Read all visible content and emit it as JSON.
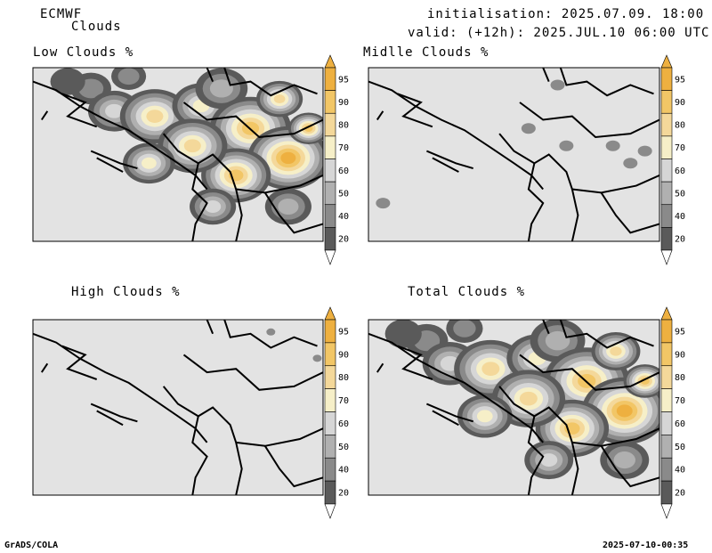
{
  "header": {
    "model": "ECMWF",
    "product": "Clouds",
    "initialisation": "initialisation: 2025.07.09. 18:00 UTC",
    "valid": "valid: (+12h): 2025.JUL.10 06:00 UTC"
  },
  "panels": [
    {
      "id": "low",
      "title": "Low Clouds %"
    },
    {
      "id": "middle",
      "title": "Midlle Clouds %"
    },
    {
      "id": "high",
      "title": "High Clouds %"
    },
    {
      "id": "total",
      "title": "Total Clouds %"
    }
  ],
  "colorbar": {
    "levels": [
      "95",
      "90",
      "80",
      "70",
      "60",
      "50",
      "40",
      "20"
    ],
    "colors": {
      "above95": "#eeb040",
      "90_95": "#f2c666",
      "80_90": "#f4d89a",
      "70_80": "#f6efc8",
      "60_70": "#d6d6d6",
      "50_60": "#b0b0b0",
      "40_50": "#8a8a8a",
      "20_40": "#5a5a5a",
      "below20": "#ffffff"
    }
  },
  "map_colors": {
    "background": "#e3e3e3",
    "borders": "#000000"
  },
  "footer": {
    "left": "GrADS/COLA",
    "right": "2025-07-10-00:35"
  }
}
